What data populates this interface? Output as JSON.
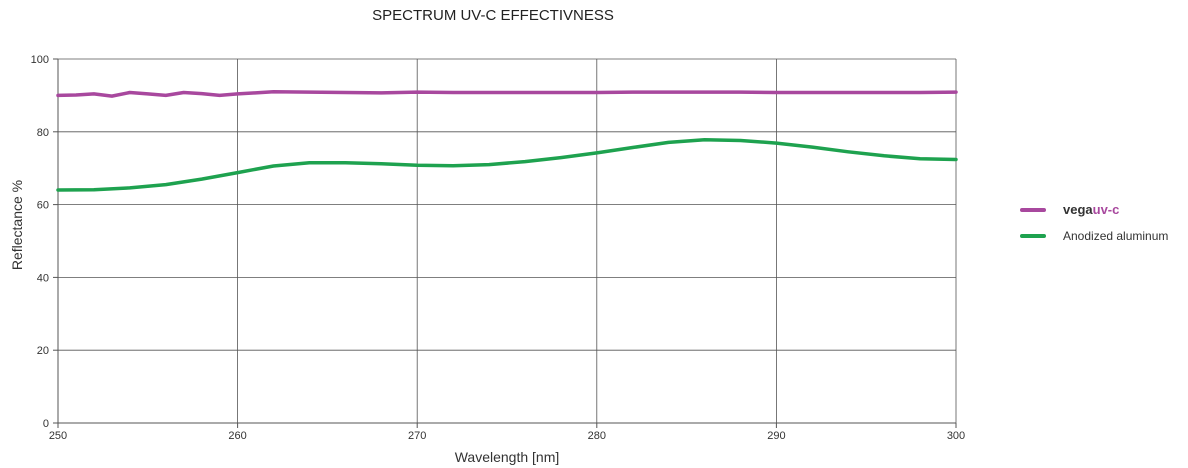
{
  "chart_data": {
    "type": "line",
    "title": "SPECTRUM UV-C EFFECTIVNESS",
    "xlabel": "Wavelength [nm]",
    "ylabel": "Reflectance %",
    "xlim": [
      250,
      300
    ],
    "ylim": [
      0,
      100
    ],
    "x_ticks": [
      250,
      260,
      270,
      280,
      290,
      300
    ],
    "y_ticks": [
      0,
      20,
      40,
      60,
      80,
      100
    ],
    "grid": true,
    "legend_position": "right",
    "series": [
      {
        "legend_part_a": "vega",
        "legend_part_b": "uv-c",
        "color": "#a8489e",
        "x": [
          250,
          251,
          252,
          253,
          254,
          255,
          256,
          257,
          258,
          259,
          260,
          261,
          262,
          264,
          266,
          268,
          270,
          272,
          274,
          276,
          278,
          280,
          282,
          284,
          286,
          288,
          290,
          292,
          294,
          296,
          298,
          300
        ],
        "y": [
          90,
          90.1,
          90.4,
          89.8,
          90.8,
          90.4,
          90.0,
          90.8,
          90.5,
          90.0,
          90.4,
          90.7,
          91.0,
          90.9,
          90.8,
          90.7,
          90.9,
          90.8,
          90.8,
          90.8,
          90.8,
          90.8,
          90.9,
          90.9,
          90.9,
          90.9,
          90.8,
          90.8,
          90.8,
          90.8,
          90.8,
          90.9
        ]
      },
      {
        "name": "Anodized aluminum",
        "color": "#1ea24f",
        "x": [
          250,
          252,
          254,
          256,
          258,
          260,
          262,
          264,
          266,
          268,
          270,
          272,
          274,
          276,
          278,
          280,
          282,
          284,
          286,
          288,
          290,
          292,
          294,
          296,
          298,
          300
        ],
        "y": [
          64.0,
          64.1,
          64.6,
          65.5,
          67.0,
          68.8,
          70.6,
          71.5,
          71.5,
          71.2,
          70.8,
          70.7,
          71.0,
          71.8,
          72.9,
          74.2,
          75.7,
          77.1,
          77.8,
          77.6,
          76.9,
          75.8,
          74.5,
          73.4,
          72.6,
          72.4
        ]
      }
    ]
  }
}
